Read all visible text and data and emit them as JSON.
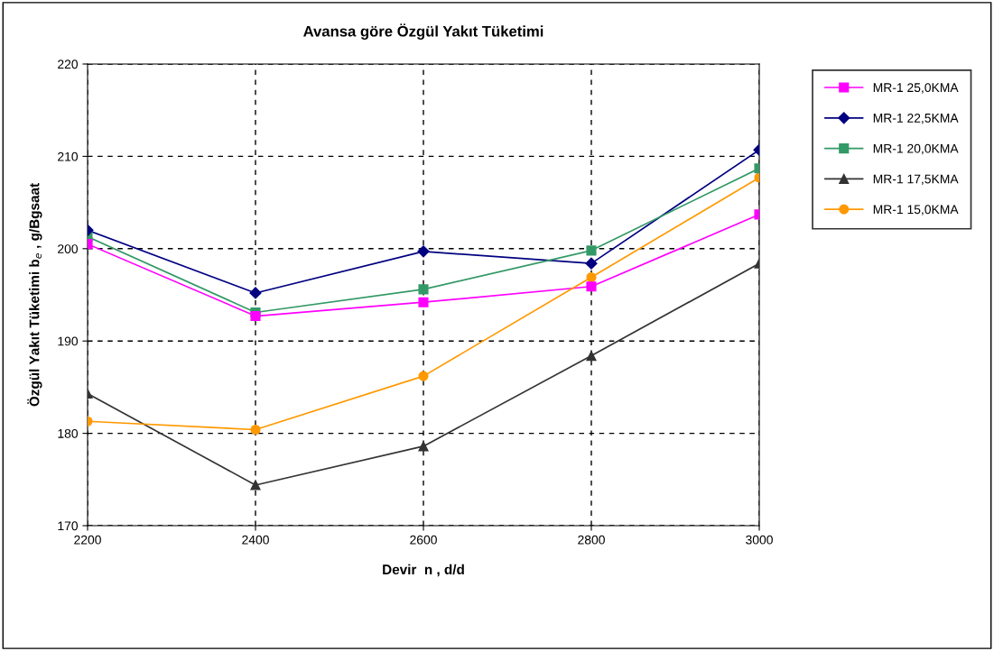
{
  "chart_data": {
    "type": "line",
    "title": "Avansa göre Özgül Yakıt Tüketimi",
    "xlabel": "Devir  n , d/d",
    "ylabel": "Özgül Yakıt Tüketimi b$_{e}$ , g/Bgsaat",
    "x": [
      2200,
      2400,
      2600,
      2800,
      3000
    ],
    "xlim": [
      2200,
      3000
    ],
    "xticks": [
      2200,
      2400,
      2600,
      2800,
      3000
    ],
    "ylim": [
      170,
      220
    ],
    "yticks": [
      170,
      180,
      190,
      200,
      210,
      220
    ],
    "grid": true,
    "legend": "right",
    "line_style": "solid",
    "series": [
      {
        "name": "MR-1 25,0KMA",
        "color": "#ff00ff",
        "marker": "square",
        "values": [
          200.5,
          192.7,
          194.2,
          195.9,
          203.7
        ]
      },
      {
        "name": "MR-1 22,5KMA",
        "color": "#000080",
        "marker": "diamond",
        "values": [
          202.0,
          195.2,
          199.7,
          198.4,
          210.7
        ]
      },
      {
        "name": "MR-1 20,0KMA",
        "color": "#339966",
        "marker": "square",
        "values": [
          201.3,
          193.1,
          195.6,
          199.8,
          208.7
        ]
      },
      {
        "name": "MR-1 17,5KMA",
        "color": "#333333",
        "marker": "triangle",
        "values": [
          184.3,
          174.4,
          178.6,
          188.4,
          198.4
        ]
      },
      {
        "name": "MR-1 15,0KMA",
        "color": "#ff9900",
        "marker": "circle",
        "values": [
          181.3,
          180.4,
          186.2,
          196.9,
          207.7
        ]
      }
    ]
  }
}
